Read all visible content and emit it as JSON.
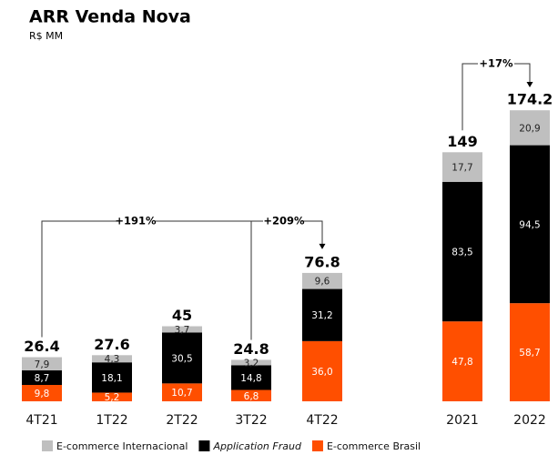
{
  "chart_data": {
    "type": "stacked_bar",
    "title": "ARR Venda Nova",
    "subtitle": "R$ MM",
    "categories": [
      "4T21",
      "1T22",
      "2T22",
      "3T22",
      "4T22",
      "2021",
      "2022"
    ],
    "series": [
      {
        "name": "E-commerce Brasil",
        "color": "#ff4f00",
        "values": [
          9.8,
          5.2,
          10.7,
          6.8,
          36.0,
          47.8,
          58.7
        ],
        "value_labels": [
          "9,8",
          "5,2",
          "10,7",
          "6,8",
          "36,0",
          "47,8",
          "58,7"
        ]
      },
      {
        "name": "Application Fraud",
        "color": "#000000",
        "values": [
          8.7,
          18.1,
          30.5,
          14.8,
          31.2,
          83.5,
          94.5
        ],
        "value_labels": [
          "8,7",
          "18,1",
          "30,5",
          "14,8",
          "31,2",
          "83,5",
          "94,5"
        ]
      },
      {
        "name": "E-commerce Internacional",
        "color": "#bfbfbf",
        "values": [
          7.9,
          4.3,
          3.7,
          3.2,
          9.6,
          17.7,
          20.9
        ],
        "value_labels": [
          "7,9",
          "4,3",
          "3,7",
          "3,2",
          "9,6",
          "17,7",
          "20,9"
        ]
      }
    ],
    "totals": [
      26.4,
      27.6,
      45.0,
      24.8,
      76.8,
      149.0,
      174.2
    ],
    "total_labels": [
      "26,4",
      "27,6",
      "45,0",
      "24,8",
      "76,8",
      "149,0",
      "174,2"
    ],
    "annotations": [
      "+191%",
      "+209%",
      "+17%"
    ]
  }
}
